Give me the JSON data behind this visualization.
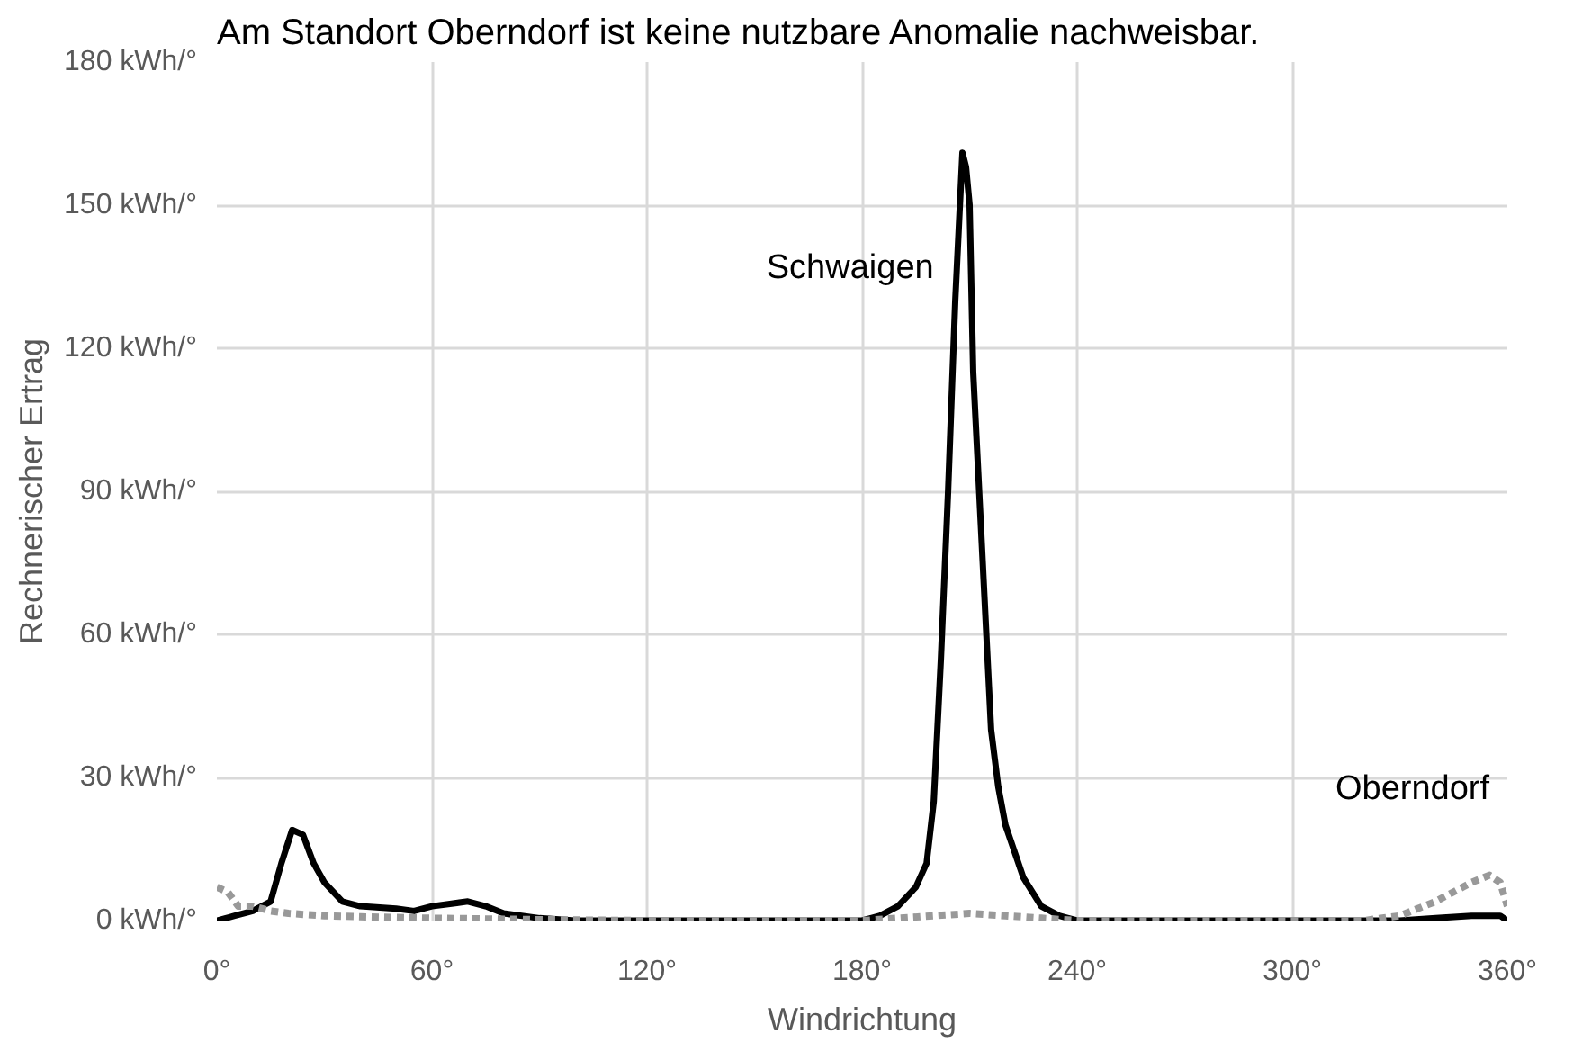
{
  "chart_data": {
    "type": "line",
    "title": "Am Standort Oberndorf ist keine nutzbare Anomalie nachweisbar.",
    "xlabel": "Windrichtung",
    "ylabel": "Rechnerischer Ertrag",
    "xlim": [
      0,
      360
    ],
    "ylim": [
      0,
      180
    ],
    "xticks": [
      {
        "value": 0,
        "label": "0°"
      },
      {
        "value": 60,
        "label": "60°"
      },
      {
        "value": 120,
        "label": "120°"
      },
      {
        "value": 180,
        "label": "180°"
      },
      {
        "value": 240,
        "label": "240°"
      },
      {
        "value": 300,
        "label": "300°"
      },
      {
        "value": 360,
        "label": "360°"
      }
    ],
    "yticks": [
      {
        "value": 0,
        "label": "0 kWh/°"
      },
      {
        "value": 30,
        "label": "30 kWh/°"
      },
      {
        "value": 60,
        "label": "60 kWh/°"
      },
      {
        "value": 90,
        "label": "90 kWh/°"
      },
      {
        "value": 120,
        "label": "120 kWh/°"
      },
      {
        "value": 150,
        "label": "150 kWh/°"
      },
      {
        "value": 180,
        "label": "180 kWh/°"
      }
    ],
    "grid": true,
    "series": [
      {
        "name": "Schwaigen",
        "color": "#000000",
        "line_style": "solid",
        "x": [
          0,
          5,
          10,
          15,
          18,
          21,
          24,
          27,
          30,
          35,
          40,
          50,
          55,
          60,
          65,
          70,
          75,
          80,
          90,
          100,
          180,
          185,
          190,
          195,
          198,
          200,
          202,
          204,
          206,
          208,
          209,
          210,
          211,
          212,
          214,
          216,
          218,
          220,
          225,
          230,
          235,
          240,
          330,
          340,
          350,
          358,
          360
        ],
        "values": [
          0,
          1,
          2,
          4,
          12,
          19,
          18,
          12,
          8,
          4,
          3,
          2.5,
          2,
          3,
          3.5,
          4,
          3,
          1.5,
          0.5,
          0,
          0,
          1,
          3,
          7,
          12,
          25,
          55,
          90,
          130,
          161,
          158,
          150,
          115,
          100,
          70,
          40,
          28,
          20,
          9,
          3,
          1,
          0,
          0,
          0.5,
          1,
          1,
          0
        ]
      },
      {
        "name": "Oberndorf",
        "color": "#999999",
        "line_style": "dashed",
        "x": [
          0,
          3,
          6,
          10,
          15,
          20,
          30,
          40,
          60,
          90,
          120,
          180,
          190,
          200,
          210,
          220,
          230,
          240,
          320,
          330,
          340,
          345,
          350,
          355,
          358,
          360
        ],
        "values": [
          7,
          6,
          3,
          3,
          2,
          1.5,
          1,
          0.8,
          0.5,
          0.2,
          0,
          0,
          0.5,
          1,
          1.5,
          1,
          0.5,
          0,
          0,
          1,
          4,
          6,
          8,
          9.5,
          8,
          3
        ]
      }
    ]
  }
}
